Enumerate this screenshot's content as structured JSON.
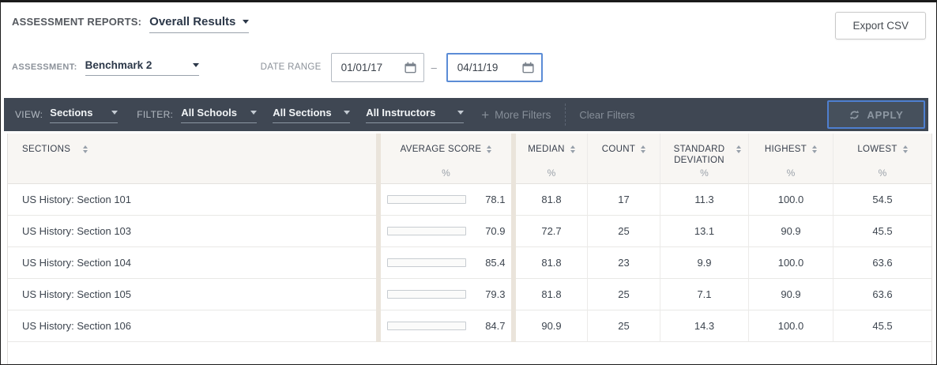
{
  "header": {
    "reports_label": "ASSESSMENT REPORTS:",
    "reports_value": "Overall Results",
    "export_button": "Export CSV"
  },
  "filters": {
    "assessment_label": "ASSESSMENT:",
    "assessment_value": "Benchmark 2",
    "date_range_label": "DATE RANGE",
    "date_from": "01/01/17",
    "date_to": "04/11/19",
    "range_separator": "–"
  },
  "toolbar": {
    "view_label": "VIEW:",
    "view_value": "Sections",
    "filter_label": "FILTER:",
    "school_filter": "All Schools",
    "section_filter": "All Sections",
    "instructor_filter": "All Instructors",
    "more_filters": "More Filters",
    "clear_filters": "Clear Filters",
    "apply_button": "APPLY"
  },
  "icons": {
    "caret": "caret-down-icon",
    "calendar": "calendar-icon",
    "plus": "plus-icon",
    "refresh": "refresh-icon",
    "sort": "sort-arrows-icon"
  },
  "colors": {
    "toolbar_bg": "#3f4753",
    "apply_border": "#4e7fd0",
    "active_input_border": "#5b8cd6",
    "bar_teal": "#52c6b2",
    "bar_yellow": "#f6c64c",
    "header_bg": "#f8f6f3",
    "column_divider": "#eae4db"
  },
  "table": {
    "columns": [
      {
        "label": "SECTIONS",
        "unit": ""
      },
      {
        "label": "AVERAGE SCORE",
        "unit": "%"
      },
      {
        "label": "MEDIAN",
        "unit": "%"
      },
      {
        "label": "COUNT",
        "unit": ""
      },
      {
        "label": "STANDARD DEVIATION",
        "unit": "%"
      },
      {
        "label": "HIGHEST",
        "unit": "%"
      },
      {
        "label": "LOWEST",
        "unit": "%"
      }
    ],
    "rows": [
      {
        "name": "US History: Section 101",
        "avg_score": "78.1",
        "bar_color": "#52c6b2",
        "median": "81.8",
        "count": "17",
        "std_dev": "11.3",
        "highest": "100.0",
        "lowest": "54.5"
      },
      {
        "name": "US History: Section 103",
        "avg_score": "70.9",
        "bar_color": "#f6c64c",
        "median": "72.7",
        "count": "25",
        "std_dev": "13.1",
        "highest": "90.9",
        "lowest": "45.5"
      },
      {
        "name": "US History: Section 104",
        "avg_score": "85.4",
        "bar_color": "#52c6b2",
        "median": "81.8",
        "count": "23",
        "std_dev": "9.9",
        "highest": "100.0",
        "lowest": "63.6"
      },
      {
        "name": "US History: Section 105",
        "avg_score": "79.3",
        "bar_color": "#52c6b2",
        "median": "81.8",
        "count": "25",
        "std_dev": "7.1",
        "highest": "90.9",
        "lowest": "63.6"
      },
      {
        "name": "US History: Section 106",
        "avg_score": "84.7",
        "bar_color": "#52c6b2",
        "median": "90.9",
        "count": "25",
        "std_dev": "14.3",
        "highest": "100.0",
        "lowest": "45.5"
      }
    ]
  }
}
